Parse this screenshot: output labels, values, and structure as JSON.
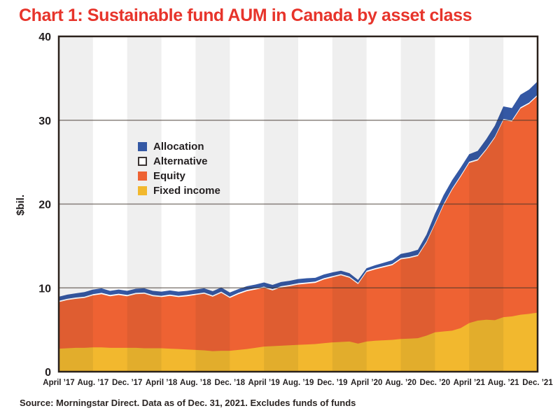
{
  "title": "Chart 1: Sustainable fund AUM in Canada by asset class",
  "source": "Source: Morningstar Direct. Data as of Dec. 31, 2021. Excludes funds of funds",
  "legend": [
    {
      "label": "Allocation",
      "color": "#3458a4",
      "border": "#3458a4"
    },
    {
      "label": "Alternative",
      "color": "#ffffff",
      "border": "#3a3332"
    },
    {
      "label": "Equity",
      "color": "#ee6233",
      "border": "#ee6233"
    },
    {
      "label": "Fixed income",
      "color": "#f2b82e",
      "border": "#f2b82e"
    }
  ],
  "colors": {
    "title_red": "#e7342b",
    "text": "#231f20",
    "frame": "#2a211b",
    "gridline": "rgba(62,50,42,0.6)",
    "stripe_overlay": "rgba(35,31,32,0.07)",
    "plot_background": "#ffffff"
  },
  "chart_data": {
    "type": "area",
    "stacked": true,
    "title": "Chart 1: Sustainable fund AUM in Canada by asset class",
    "ylabel": "$bil.",
    "xlabel": "",
    "ylim": [
      0,
      40
    ],
    "y_ticks": [
      0,
      10,
      20,
      30,
      40
    ],
    "frequency": "monthly",
    "x_tick_labels": [
      "April ’17",
      "Aug. ’17",
      "Dec. ’17",
      "April ’18",
      "Aug. ’18",
      "Dec. ’18",
      "April ’19",
      "Aug. ’19",
      "Dec. ’19",
      "April ’20",
      "Aug. ’20",
      "Dec. ’20",
      "April ’21",
      "Aug. ’21",
      "Dec. ’21"
    ],
    "legend_position": "upper-left-inside",
    "grid": "horizontal",
    "series": [
      {
        "name": "Fixed income",
        "color": "#f2b82e",
        "values": [
          2.75,
          2.8,
          2.85,
          2.85,
          2.9,
          2.9,
          2.85,
          2.85,
          2.85,
          2.85,
          2.8,
          2.8,
          2.8,
          2.75,
          2.7,
          2.65,
          2.6,
          2.55,
          2.45,
          2.5,
          2.5,
          2.6,
          2.7,
          2.85,
          3.0,
          3.05,
          3.1,
          3.15,
          3.2,
          3.25,
          3.3,
          3.4,
          3.5,
          3.55,
          3.6,
          3.35,
          3.6,
          3.7,
          3.75,
          3.8,
          3.9,
          3.95,
          4.0,
          4.3,
          4.7,
          4.8,
          4.9,
          5.2,
          5.8,
          6.1,
          6.2,
          6.15,
          6.5,
          6.6,
          6.8,
          6.9,
          7.05
        ]
      },
      {
        "name": "Equity",
        "color": "#ee6233",
        "values": [
          5.55,
          5.75,
          5.85,
          5.95,
          6.2,
          6.35,
          6.15,
          6.3,
          6.15,
          6.4,
          6.5,
          6.2,
          6.1,
          6.3,
          6.2,
          6.35,
          6.55,
          6.75,
          6.5,
          6.9,
          6.3,
          6.65,
          6.9,
          6.95,
          7.0,
          6.65,
          6.95,
          7.05,
          7.2,
          7.25,
          7.3,
          7.6,
          7.75,
          7.95,
          7.6,
          7.1,
          8.3,
          8.5,
          8.7,
          8.9,
          9.5,
          9.6,
          9.8,
          11.1,
          12.9,
          15.05,
          16.8,
          18.05,
          19.1,
          19.1,
          20.25,
          21.75,
          23.5,
          23.25,
          24.6,
          25.05,
          25.85
        ]
      },
      {
        "name": "Alternative",
        "color": "#ffffff",
        "values": [
          0.15,
          0.15,
          0.15,
          0.15,
          0.15,
          0.15,
          0.15,
          0.15,
          0.15,
          0.15,
          0.15,
          0.15,
          0.15,
          0.15,
          0.15,
          0.15,
          0.15,
          0.15,
          0.15,
          0.15,
          0.15,
          0.15,
          0.15,
          0.15,
          0.15,
          0.15,
          0.15,
          0.15,
          0.15,
          0.15,
          0.15,
          0.15,
          0.15,
          0.15,
          0.15,
          0.15,
          0.15,
          0.15,
          0.15,
          0.15,
          0.15,
          0.15,
          0.15,
          0.15,
          0.15,
          0.15,
          0.15,
          0.15,
          0.15,
          0.15,
          0.15,
          0.15,
          0.15,
          0.15,
          0.15,
          0.15,
          0.15
        ]
      },
      {
        "name": "Allocation",
        "color": "#3458a4",
        "values": [
          0.5,
          0.5,
          0.5,
          0.55,
          0.55,
          0.55,
          0.5,
          0.5,
          0.5,
          0.5,
          0.5,
          0.5,
          0.5,
          0.5,
          0.5,
          0.5,
          0.5,
          0.5,
          0.5,
          0.5,
          0.5,
          0.45,
          0.45,
          0.45,
          0.5,
          0.5,
          0.5,
          0.5,
          0.5,
          0.5,
          0.45,
          0.45,
          0.45,
          0.4,
          0.4,
          0.35,
          0.3,
          0.35,
          0.4,
          0.45,
          0.5,
          0.55,
          0.6,
          0.8,
          1.1,
          1.05,
          1.0,
          0.95,
          0.9,
          1.0,
          1.15,
          1.3,
          1.5,
          1.45,
          1.5,
          1.55,
          1.6
        ]
      }
    ]
  }
}
